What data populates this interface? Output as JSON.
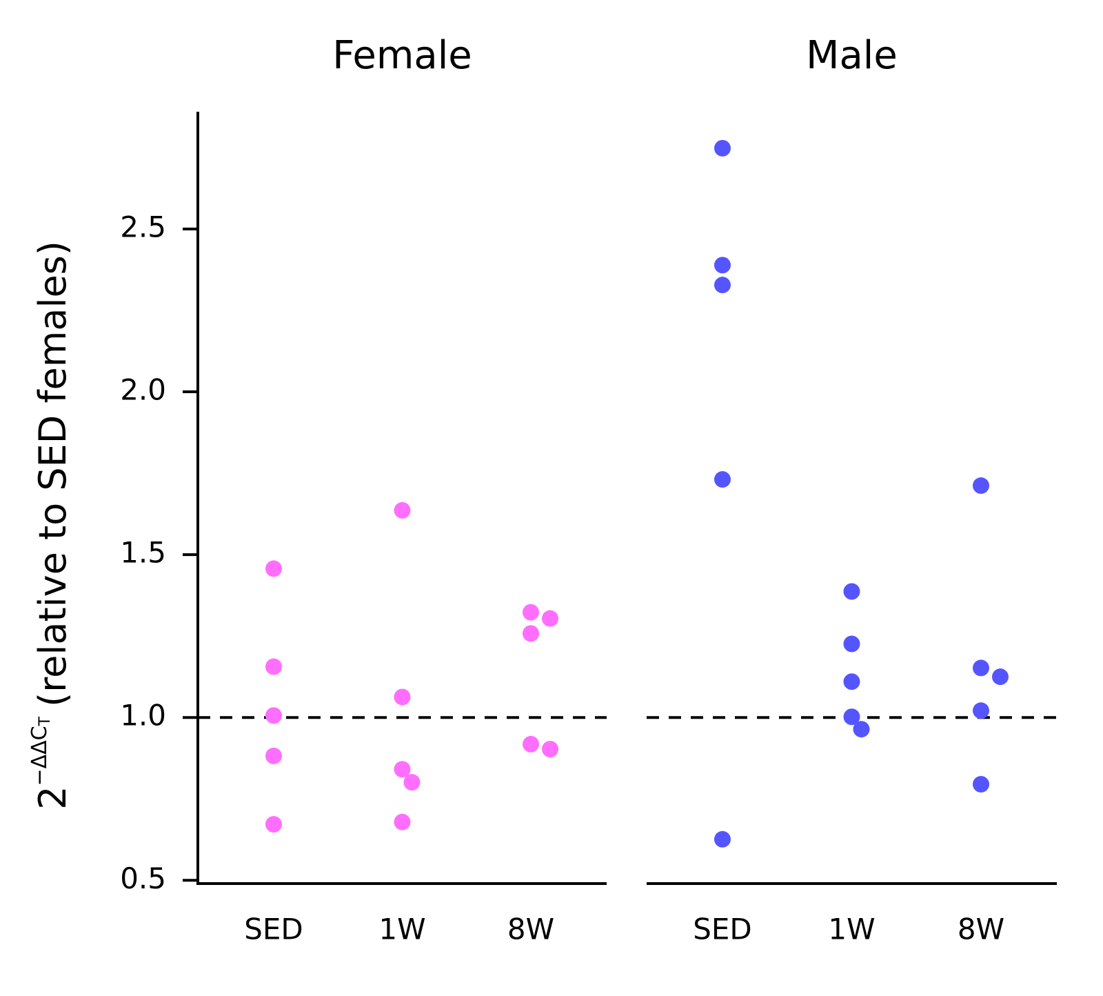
{
  "chart_data": [
    {
      "type": "strip",
      "title": "Female",
      "ylabel": {
        "base": "2",
        "exponent": "−ΔΔC",
        "exponent_subscript": "T",
        "text": "(relative to SED females)"
      },
      "categories": [
        "SED",
        "1W",
        "8W"
      ],
      "color": "#ff6eff",
      "values": [
        [
          1.457,
          1.156,
          1.006,
          0.882,
          0.672
        ],
        [
          1.636,
          1.063,
          0.841,
          0.801,
          0.679
        ],
        [
          1.323,
          1.304,
          1.258,
          0.918,
          0.903
        ]
      ],
      "reference_line": 1.0,
      "ylim": [
        0.49,
        2.86
      ],
      "yticks": [
        0.5,
        {
          "value": 1.0,
          "label": "1.0"
        },
        1.5,
        {
          "value": 2.0,
          "label": "2.0"
        },
        2.5
      ]
    },
    {
      "type": "strip",
      "title": "Male",
      "categories": [
        "SED",
        "1W",
        "8W"
      ],
      "color": "#5555ff",
      "values": [
        [
          2.748,
          2.389,
          2.328,
          1.731,
          0.626
        ],
        [
          1.387,
          1.226,
          1.11,
          1.002,
          0.964
        ],
        [
          1.712,
          1.152,
          1.125,
          1.021,
          0.795
        ]
      ],
      "reference_line": 1.0,
      "ylim": [
        0.49,
        2.86
      ]
    }
  ]
}
